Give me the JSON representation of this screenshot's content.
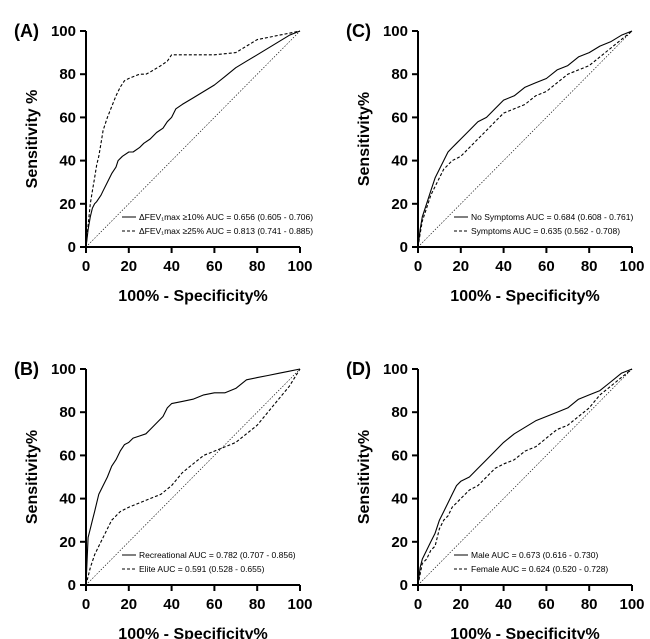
{
  "chart_data": [
    {
      "panel": "(A)",
      "type": "line",
      "xlabel": "100% - Specificity%",
      "ylabel": "Sensitivity %",
      "xlim": [
        0,
        100
      ],
      "ylim": [
        0,
        100
      ],
      "xticks": [
        "0",
        "20",
        "40",
        "60",
        "80",
        "100"
      ],
      "yticks": [
        "0",
        "20",
        "40",
        "60",
        "80",
        "100"
      ],
      "grid": false,
      "legend_position": "bottom-right",
      "series": [
        {
          "name": "ΔFEV₁max ≥10% AUC = 0.656 (0.605 - 0.706)",
          "style": "solid",
          "x": [
            0,
            1,
            2,
            3,
            4,
            5,
            7,
            8,
            10,
            12,
            14,
            15,
            17,
            20,
            22,
            25,
            27,
            30,
            33,
            36,
            38,
            40,
            42,
            45,
            50,
            55,
            60,
            65,
            70,
            75,
            80,
            85,
            90,
            95,
            100
          ],
          "y": [
            0,
            8,
            14,
            18,
            20,
            21,
            24,
            26,
            30,
            34,
            37,
            40,
            42,
            44,
            44,
            46,
            48,
            50,
            53,
            55,
            58,
            60,
            64,
            66,
            69,
            72,
            75,
            79,
            83,
            86,
            89,
            92,
            95,
            98,
            100
          ]
        },
        {
          "name": "ΔFEV₁max ≥25% AUC = 0.813 (0.741 - 0.885)",
          "style": "dashed",
          "x": [
            0,
            1,
            2,
            3,
            4,
            5,
            6,
            7,
            8,
            10,
            12,
            14,
            16,
            18,
            20,
            25,
            28,
            30,
            35,
            38,
            40,
            45,
            50,
            60,
            70,
            80,
            85,
            90,
            95,
            100
          ],
          "y": [
            0,
            10,
            20,
            26,
            32,
            38,
            42,
            48,
            54,
            60,
            65,
            70,
            74,
            77,
            78,
            80,
            80,
            81,
            84,
            86,
            89,
            89,
            89,
            89,
            90,
            96,
            97,
            98,
            99,
            100
          ]
        }
      ]
    },
    {
      "panel": "(C)",
      "type": "line",
      "xlabel": "100% - Specificity%",
      "ylabel": "Sensitivity%",
      "xlim": [
        0,
        100
      ],
      "ylim": [
        0,
        100
      ],
      "xticks": [
        "0",
        "20",
        "40",
        "60",
        "80",
        "100"
      ],
      "yticks": [
        "0",
        "20",
        "40",
        "60",
        "80",
        "100"
      ],
      "grid": false,
      "legend_position": "bottom-right",
      "series": [
        {
          "name": "No Symptoms AUC = 0.684 (0.608 - 0.761)",
          "style": "solid",
          "x": [
            0,
            1,
            2,
            4,
            6,
            8,
            10,
            12,
            14,
            16,
            18,
            20,
            24,
            28,
            32,
            36,
            40,
            45,
            50,
            55,
            60,
            65,
            70,
            75,
            80,
            85,
            90,
            95,
            100
          ],
          "y": [
            0,
            8,
            14,
            20,
            26,
            32,
            36,
            40,
            44,
            46,
            48,
            50,
            54,
            58,
            60,
            64,
            68,
            70,
            74,
            76,
            78,
            82,
            84,
            88,
            90,
            93,
            95,
            98,
            100
          ]
        },
        {
          "name": "Symptoms AUC = 0.635 (0.562 - 0.708)",
          "style": "dashed",
          "x": [
            0,
            1,
            2,
            4,
            6,
            8,
            10,
            12,
            14,
            16,
            20,
            24,
            28,
            32,
            36,
            40,
            45,
            50,
            55,
            60,
            65,
            70,
            75,
            80,
            85,
            90,
            95,
            100
          ],
          "y": [
            0,
            6,
            12,
            18,
            24,
            28,
            32,
            36,
            38,
            40,
            42,
            46,
            50,
            54,
            58,
            62,
            64,
            66,
            70,
            72,
            76,
            80,
            82,
            84,
            88,
            92,
            96,
            100
          ]
        }
      ]
    },
    {
      "panel": "(B)",
      "type": "line",
      "xlabel": "100% - Specificity%",
      "ylabel": "Sensitivity%",
      "xlim": [
        0,
        100
      ],
      "ylim": [
        0,
        100
      ],
      "xticks": [
        "0",
        "20",
        "40",
        "60",
        "80",
        "100"
      ],
      "yticks": [
        "0",
        "20",
        "40",
        "60",
        "80",
        "100"
      ],
      "grid": false,
      "legend_position": "bottom-right",
      "series": [
        {
          "name": "Recreational AUC = 0.782 (0.707 - 0.856)",
          "style": "solid",
          "x": [
            0,
            1,
            2,
            3,
            4,
            5,
            6,
            8,
            10,
            12,
            14,
            16,
            18,
            20,
            22,
            25,
            28,
            30,
            33,
            36,
            38,
            40,
            45,
            50,
            55,
            60,
            65,
            70,
            75,
            80,
            85,
            90,
            95,
            100
          ],
          "y": [
            0,
            22,
            26,
            30,
            34,
            38,
            42,
            46,
            50,
            55,
            58,
            62,
            65,
            66,
            68,
            69,
            70,
            72,
            75,
            78,
            82,
            84,
            85,
            86,
            88,
            89,
            89,
            91,
            95,
            96,
            97,
            98,
            99,
            100
          ]
        },
        {
          "name": "Elite AUC = 0.591 (0.528 - 0.655)",
          "style": "dashed",
          "x": [
            0,
            2,
            4,
            6,
            8,
            10,
            12,
            14,
            16,
            18,
            20,
            25,
            30,
            35,
            40,
            45,
            50,
            55,
            60,
            65,
            70,
            75,
            80,
            85,
            90,
            95,
            100
          ],
          "y": [
            0,
            8,
            14,
            18,
            22,
            26,
            30,
            32,
            34,
            35,
            36,
            38,
            40,
            42,
            46,
            52,
            56,
            60,
            62,
            64,
            66,
            70,
            74,
            80,
            86,
            92,
            100
          ]
        }
      ]
    },
    {
      "panel": "(D)",
      "type": "line",
      "xlabel": "100% - Specificity%",
      "ylabel": "Sensitivity%",
      "xlim": [
        0,
        100
      ],
      "ylim": [
        0,
        100
      ],
      "xticks": [
        "0",
        "20",
        "40",
        "60",
        "80",
        "100"
      ],
      "yticks": [
        "0",
        "20",
        "40",
        "60",
        "80",
        "100"
      ],
      "grid": false,
      "legend_position": "bottom-right",
      "series": [
        {
          "name": "Male AUC = 0.673 (0.616 - 0.730)",
          "style": "solid",
          "x": [
            0,
            1,
            2,
            4,
            6,
            8,
            10,
            12,
            14,
            16,
            18,
            20,
            24,
            28,
            32,
            36,
            40,
            45,
            50,
            55,
            60,
            65,
            70,
            75,
            80,
            85,
            90,
            95,
            100
          ],
          "y": [
            0,
            8,
            12,
            16,
            20,
            24,
            30,
            34,
            38,
            42,
            46,
            48,
            50,
            54,
            58,
            62,
            66,
            70,
            73,
            76,
            78,
            80,
            82,
            86,
            88,
            90,
            94,
            98,
            100
          ]
        },
        {
          "name": "Female AUC = 0.624 (0.520 - 0.728)",
          "style": "dashed",
          "x": [
            0,
            2,
            4,
            6,
            8,
            10,
            12,
            14,
            16,
            18,
            20,
            24,
            28,
            32,
            36,
            40,
            45,
            50,
            55,
            60,
            65,
            70,
            75,
            80,
            85,
            90,
            95,
            100
          ],
          "y": [
            0,
            10,
            12,
            16,
            18,
            26,
            30,
            32,
            36,
            38,
            40,
            44,
            46,
            50,
            54,
            56,
            58,
            62,
            64,
            68,
            72,
            74,
            78,
            82,
            88,
            92,
            96,
            100
          ]
        }
      ]
    }
  ]
}
